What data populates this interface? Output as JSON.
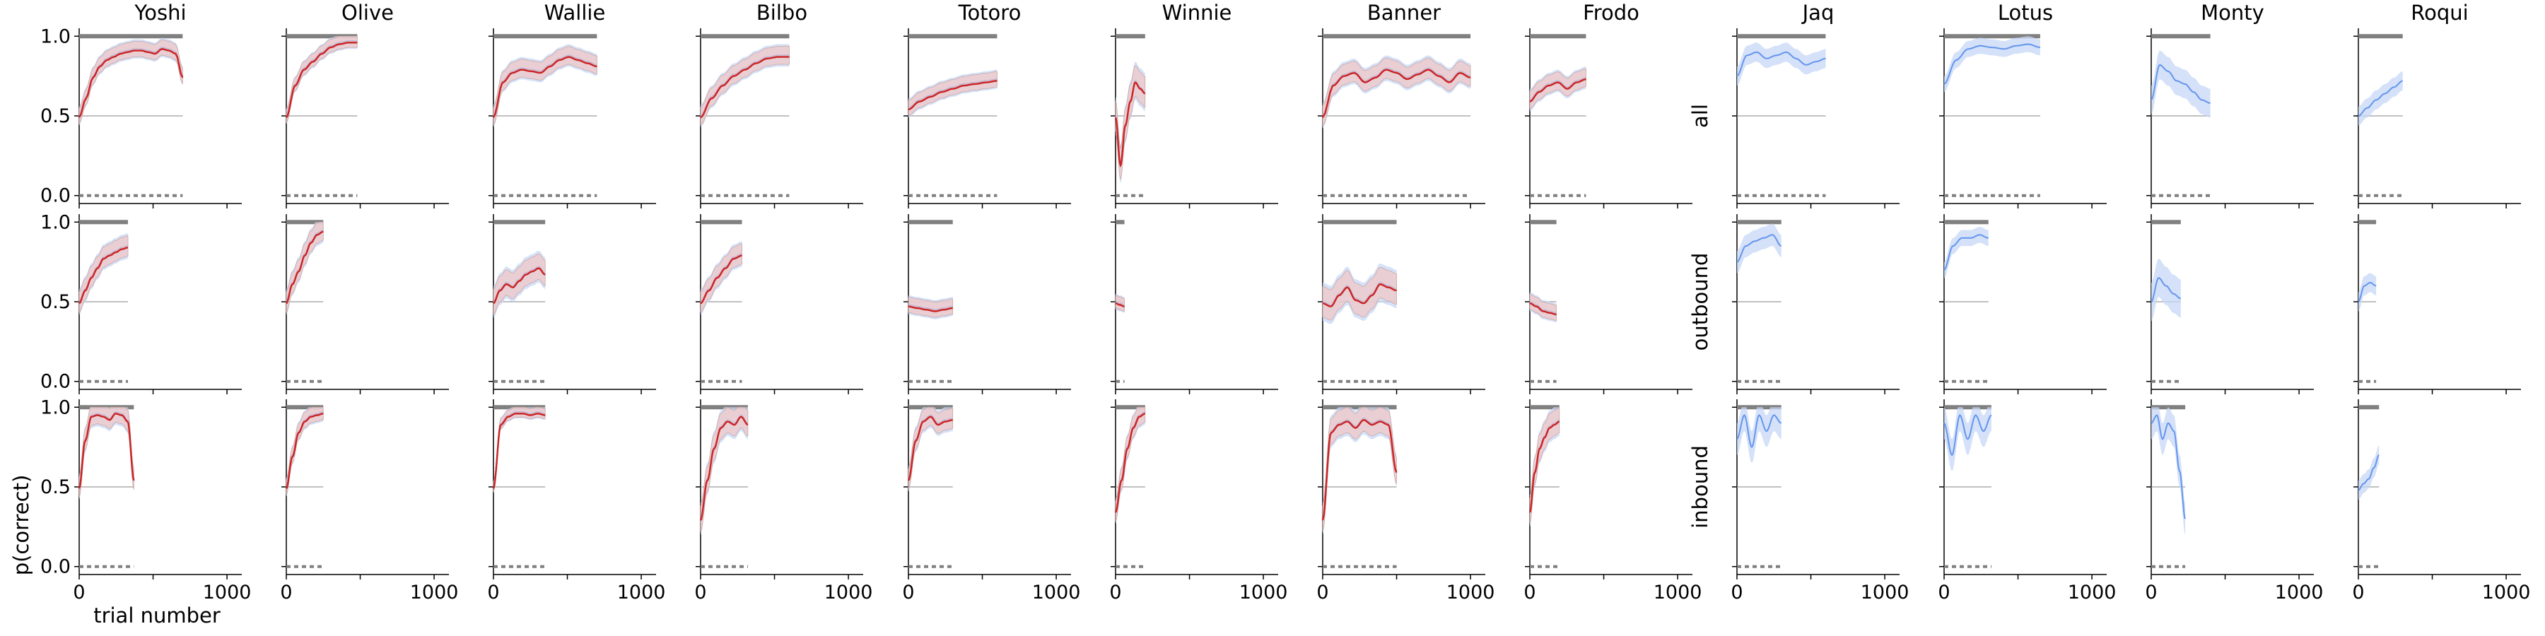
{
  "chart_data": {
    "type": "line",
    "ylabel": "p(correct)",
    "xlabel": "trial number",
    "xlim": [
      0,
      1100
    ],
    "ylim": [
      -0.05,
      1.05
    ],
    "xticks": [
      0,
      1000
    ],
    "yticks": [
      "0.0",
      "0.5",
      "1.0"
    ],
    "rows": [
      "all",
      "outbound",
      "inbound"
    ],
    "colors": {
      "blue": "#6495ed",
      "blue_fill": "#c6d7f6",
      "red": "#cc2222",
      "red_fill": "#f2c8c4",
      "gray": "#808080"
    },
    "panels": [
      {
        "name": "Yoshi",
        "red": true,
        "rows": [
          {
            "n": 700,
            "y": [
              0.5,
              0.62,
              0.75,
              0.82,
              0.86,
              0.88,
              0.9,
              0.91,
              0.92,
              0.92,
              0.91,
              0.9,
              0.93,
              0.92,
              0.9,
              0.75
            ],
            "band": 0.06
          },
          {
            "n": 330,
            "y": [
              0.5,
              0.58,
              0.66,
              0.72,
              0.78,
              0.8,
              0.82,
              0.84,
              0.85
            ],
            "band": 0.08
          },
          {
            "n": 370,
            "y": [
              0.5,
              0.8,
              0.95,
              0.96,
              0.95,
              0.93,
              0.97,
              0.96,
              0.92,
              0.55
            ],
            "band": 0.08
          }
        ]
      },
      {
        "name": "Olive",
        "red": true,
        "rows": [
          {
            "n": 480,
            "y": [
              0.5,
              0.7,
              0.8,
              0.85,
              0.9,
              0.94,
              0.96,
              0.97,
              0.97
            ],
            "band": 0.05
          },
          {
            "n": 250,
            "y": [
              0.5,
              0.62,
              0.7,
              0.8,
              0.88,
              0.93,
              0.95
            ],
            "band": 0.08
          },
          {
            "n": 250,
            "y": [
              0.5,
              0.7,
              0.85,
              0.92,
              0.95,
              0.96,
              0.97
            ],
            "band": 0.06
          }
        ]
      },
      {
        "name": "Wallie",
        "red": true,
        "rows": [
          {
            "n": 700,
            "y": [
              0.5,
              0.72,
              0.78,
              0.8,
              0.79,
              0.78,
              0.82,
              0.86,
              0.88,
              0.86,
              0.84,
              0.82
            ],
            "band": 0.07
          },
          {
            "n": 350,
            "y": [
              0.5,
              0.58,
              0.62,
              0.6,
              0.64,
              0.68,
              0.7,
              0.72,
              0.68
            ],
            "band": 0.1
          },
          {
            "n": 350,
            "y": [
              0.5,
              0.9,
              0.95,
              0.97,
              0.97,
              0.96,
              0.97,
              0.96
            ],
            "band": 0.04
          }
        ]
      },
      {
        "name": "Bilbo",
        "red": true,
        "rows": [
          {
            "n": 600,
            "y": [
              0.5,
              0.62,
              0.7,
              0.76,
              0.8,
              0.84,
              0.87,
              0.88,
              0.88
            ],
            "band": 0.07
          },
          {
            "n": 280,
            "y": [
              0.5,
              0.58,
              0.66,
              0.72,
              0.78,
              0.8
            ],
            "band": 0.08
          },
          {
            "n": 320,
            "y": [
              0.3,
              0.55,
              0.75,
              0.88,
              0.92,
              0.9,
              0.95,
              0.9
            ],
            "band": 0.1
          }
        ]
      },
      {
        "name": "Totoro",
        "red": true,
        "rows": [
          {
            "n": 600,
            "y": [
              0.55,
              0.6,
              0.63,
              0.66,
              0.68,
              0.7,
              0.71,
              0.72,
              0.73
            ],
            "band": 0.06
          },
          {
            "n": 300,
            "y": [
              0.48,
              0.47,
              0.46,
              0.45,
              0.46,
              0.47
            ],
            "band": 0.06
          },
          {
            "n": 300,
            "y": [
              0.55,
              0.8,
              0.92,
              0.95,
              0.9,
              0.92,
              0.93
            ],
            "band": 0.08
          }
        ]
      },
      {
        "name": "Winnie",
        "red": true,
        "rows": [
          {
            "n": 200,
            "y": [
              0.5,
              0.2,
              0.45,
              0.6,
              0.72,
              0.68,
              0.65
            ],
            "band": 0.12
          },
          {
            "n": 60,
            "y": [
              0.5,
              0.49,
              0.48
            ],
            "band": 0.05
          },
          {
            "n": 200,
            "y": [
              0.35,
              0.55,
              0.75,
              0.88,
              0.95,
              0.97
            ],
            "band": 0.08
          }
        ]
      },
      {
        "name": "Banner",
        "red": true,
        "rows": [
          {
            "n": 1000,
            "y": [
              0.5,
              0.7,
              0.76,
              0.78,
              0.72,
              0.75,
              0.8,
              0.78,
              0.74,
              0.77,
              0.8,
              0.76,
              0.72,
              0.78,
              0.75
            ],
            "band": 0.08
          },
          {
            "n": 500,
            "y": [
              0.5,
              0.48,
              0.55,
              0.6,
              0.52,
              0.5,
              0.55,
              0.62,
              0.6,
              0.58
            ],
            "band": 0.12
          },
          {
            "n": 500,
            "y": [
              0.3,
              0.85,
              0.9,
              0.92,
              0.88,
              0.93,
              0.9,
              0.92,
              0.9,
              0.6
            ],
            "band": 0.1
          }
        ]
      },
      {
        "name": "Frodo",
        "red": true,
        "rows": [
          {
            "n": 380,
            "y": [
              0.6,
              0.66,
              0.7,
              0.72,
              0.68,
              0.72,
              0.74
            ],
            "band": 0.07
          },
          {
            "n": 180,
            "y": [
              0.5,
              0.48,
              0.45,
              0.44,
              0.43
            ],
            "band": 0.06
          },
          {
            "n": 200,
            "y": [
              0.35,
              0.6,
              0.75,
              0.82,
              0.88,
              0.9,
              0.92
            ],
            "band": 0.1
          }
        ]
      },
      {
        "name": "Jaq",
        "red": false,
        "rows": [
          {
            "n": 600,
            "y": [
              0.75,
              0.88,
              0.9,
              0.86,
              0.88,
              0.9,
              0.86,
              0.82,
              0.84,
              0.86
            ],
            "band": 0.06
          },
          {
            "n": 300,
            "y": [
              0.75,
              0.85,
              0.88,
              0.9,
              0.92,
              0.85
            ],
            "band": 0.07
          },
          {
            "n": 300,
            "y": [
              0.8,
              0.95,
              0.75,
              0.95,
              0.85,
              0.95,
              0.9
            ],
            "band": 0.1
          }
        ]
      },
      {
        "name": "Lotus",
        "red": false,
        "rows": [
          {
            "n": 650,
            "y": [
              0.7,
              0.85,
              0.92,
              0.94,
              0.93,
              0.92,
              0.94,
              0.95,
              0.93
            ],
            "band": 0.05
          },
          {
            "n": 300,
            "y": [
              0.7,
              0.85,
              0.9,
              0.9,
              0.92,
              0.9
            ],
            "band": 0.05
          },
          {
            "n": 320,
            "y": [
              0.9,
              0.7,
              0.95,
              0.8,
              0.95,
              0.85,
              0.95
            ],
            "band": 0.1
          }
        ]
      },
      {
        "name": "Monty",
        "red": false,
        "rows": [
          {
            "n": 400,
            "y": [
              0.6,
              0.82,
              0.78,
              0.72,
              0.7,
              0.65,
              0.6,
              0.58
            ],
            "band": 0.09
          },
          {
            "n": 200,
            "y": [
              0.5,
              0.65,
              0.6,
              0.55,
              0.52
            ],
            "band": 0.12
          },
          {
            "n": 230,
            "y": [
              0.9,
              0.95,
              0.8,
              0.9,
              0.85,
              0.6,
              0.3
            ],
            "band": 0.1
          }
        ]
      },
      {
        "name": "Roqui",
        "red": false,
        "rows": [
          {
            "n": 300,
            "y": [
              0.5,
              0.55,
              0.6,
              0.64,
              0.68,
              0.72
            ],
            "band": 0.06
          },
          {
            "n": 120,
            "y": [
              0.5,
              0.6,
              0.62,
              0.6
            ],
            "band": 0.06
          },
          {
            "n": 140,
            "y": [
              0.48,
              0.52,
              0.55,
              0.62,
              0.7
            ],
            "band": 0.06
          }
        ]
      }
    ]
  }
}
